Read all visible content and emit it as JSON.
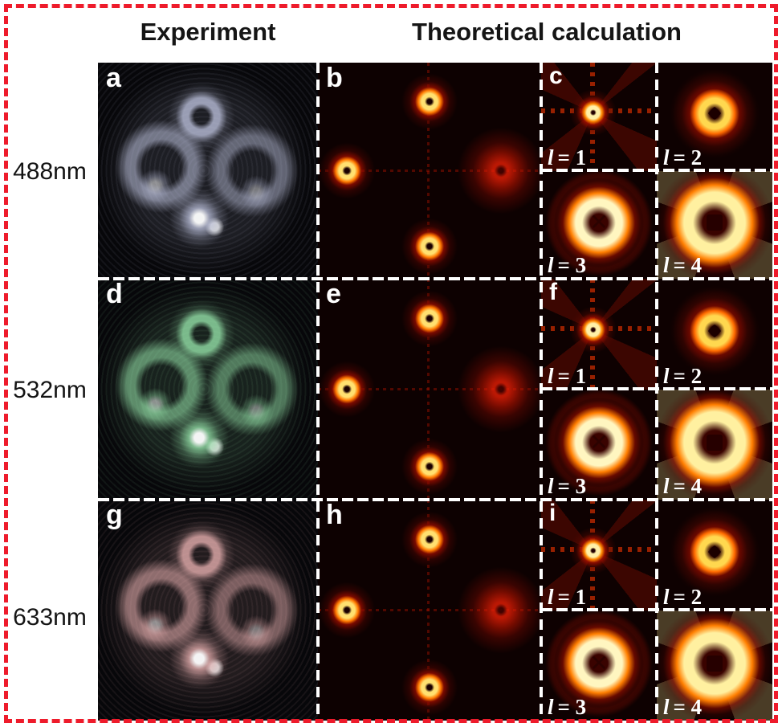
{
  "headers": {
    "experiment": "Experiment",
    "theory": "Theoretical calculation"
  },
  "rows": [
    {
      "wavelength": "488nm",
      "panels": {
        "experiment_letter": "a",
        "theory_letter": "b",
        "grid_letter": "c"
      },
      "tint": "#bcc1dc"
    },
    {
      "wavelength": "532nm",
      "panels": {
        "experiment_letter": "d",
        "theory_letter": "e",
        "grid_letter": "f"
      },
      "tint": "#96e4aa"
    },
    {
      "wavelength": "633nm",
      "panels": {
        "experiment_letter": "g",
        "theory_letter": "h",
        "grid_letter": "i"
      },
      "tint": "#e8b0b0"
    }
  ],
  "mode_labels": [
    {
      "symbol": "l",
      "rest": "= 1"
    },
    {
      "symbol": "l",
      "rest": "= 2"
    },
    {
      "symbol": "l",
      "rest": "= 3"
    },
    {
      "symbol": "l",
      "rest": "= 4"
    }
  ],
  "colors": {
    "figure_border": "#ee1b2b",
    "divider": "#ffffff",
    "background": "#ffffff",
    "panel_background": "#0d0101",
    "hot_colormap": [
      "#2a0000",
      "#a00000",
      "#ff6a00",
      "#ffd84f",
      "#fff6c0"
    ]
  }
}
